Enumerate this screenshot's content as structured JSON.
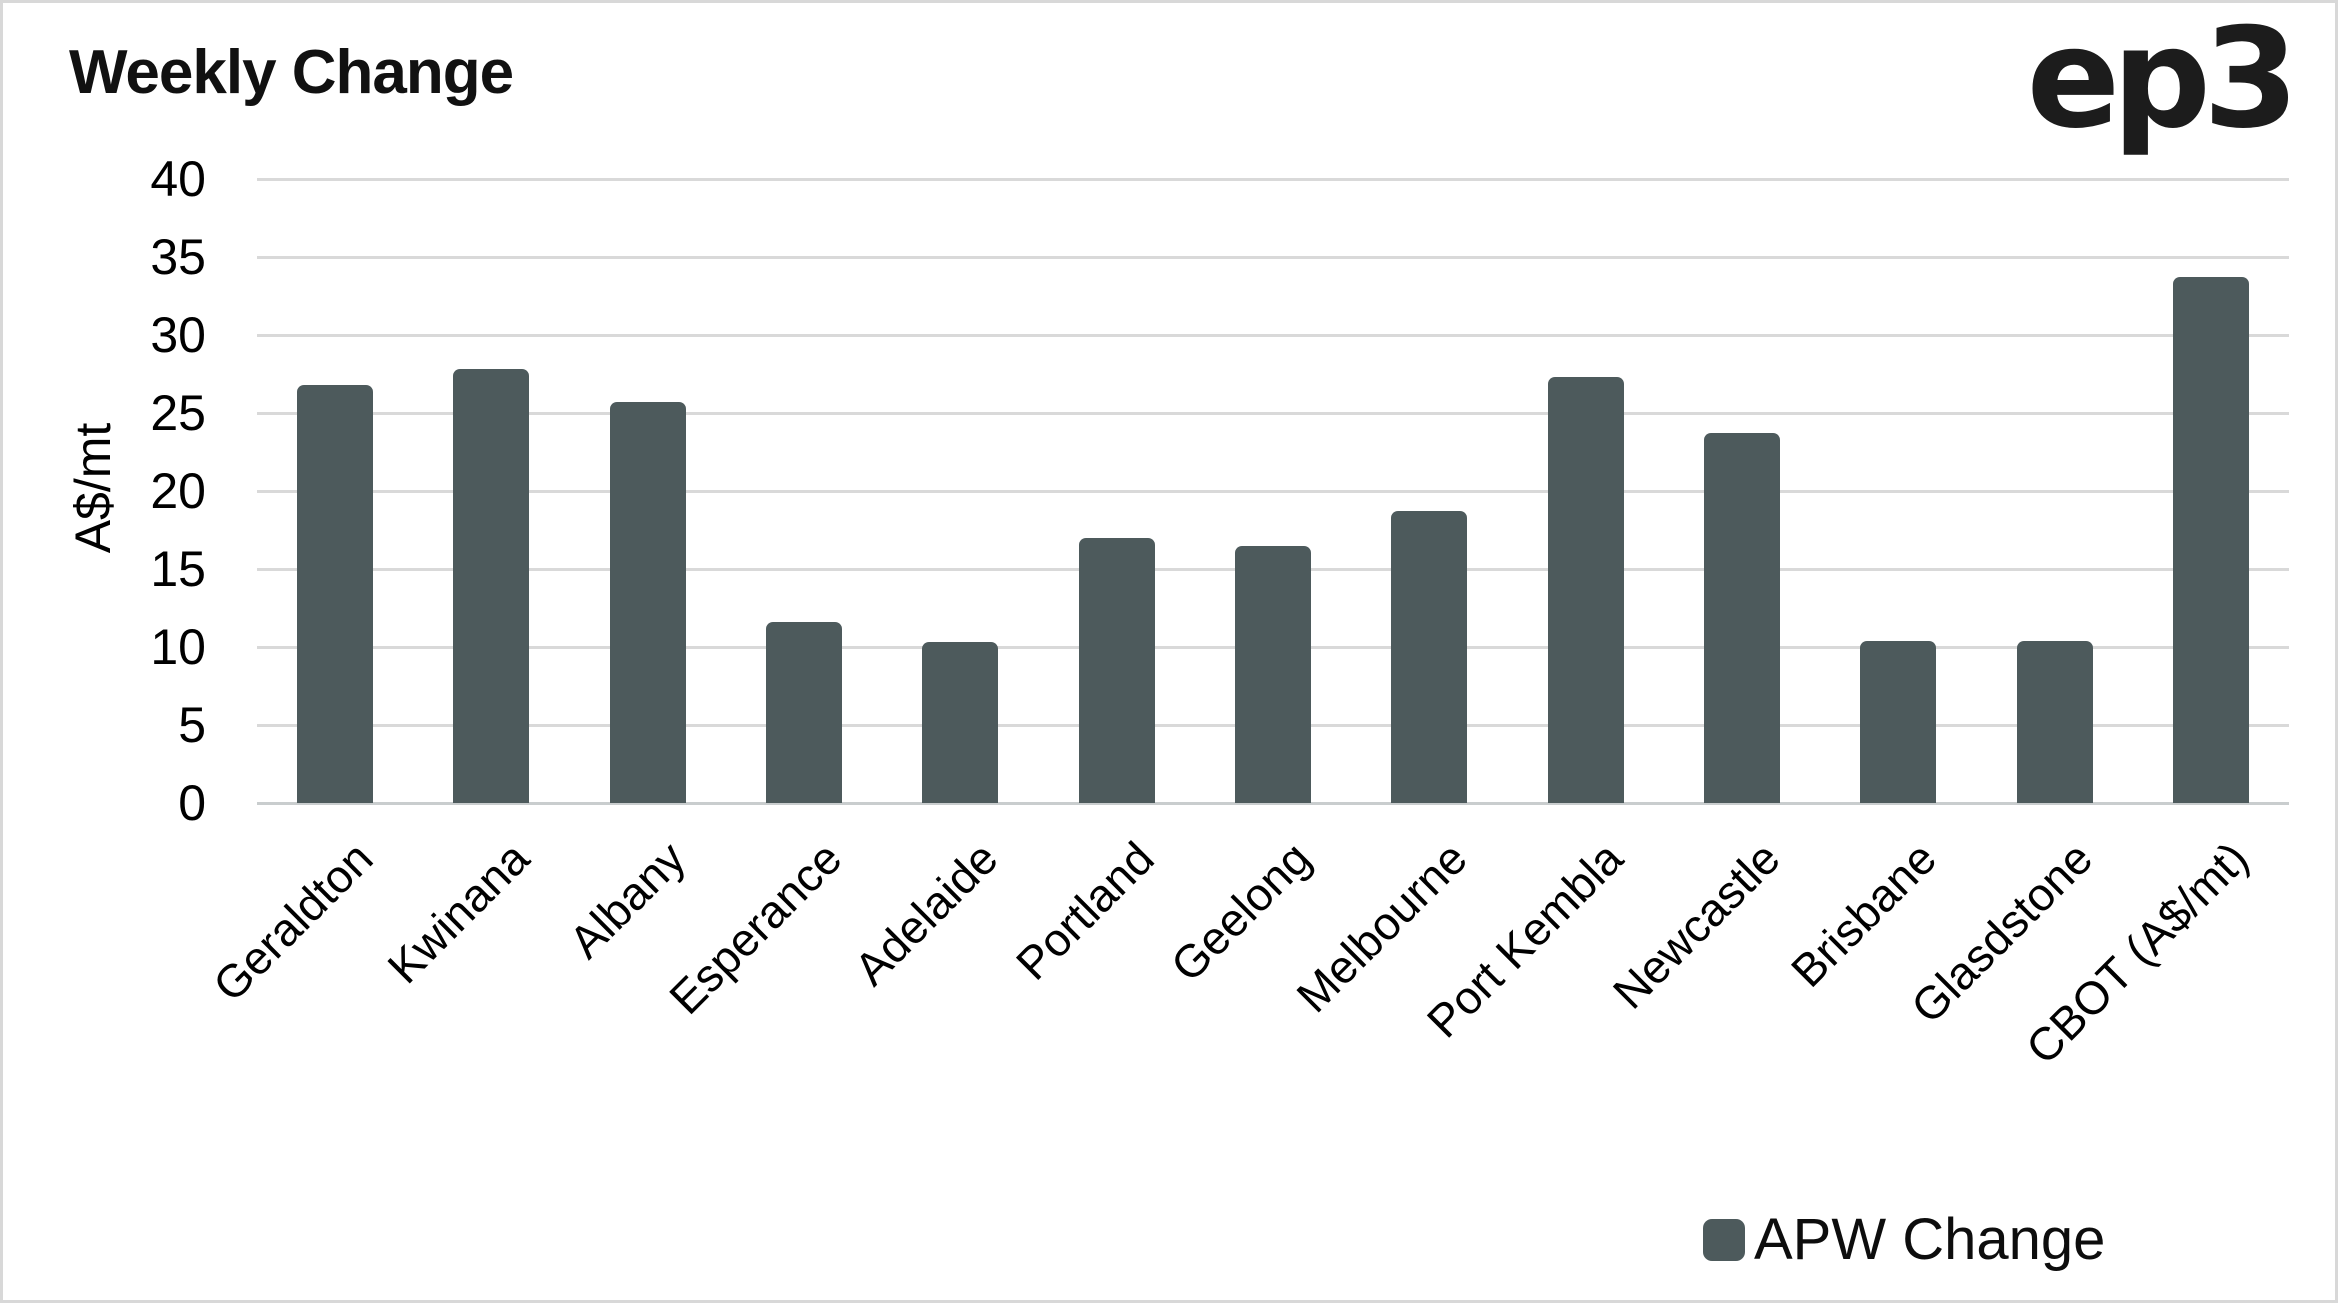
{
  "title": "Weekly Change",
  "logo_text": "ep3",
  "y_axis": {
    "label": "A$/mt",
    "ticks": [
      40,
      35,
      30,
      25,
      20,
      15,
      10,
      5,
      0
    ]
  },
  "legend": {
    "label": "APW Change"
  },
  "colors": {
    "bar": "#4d5a5c",
    "gridline": "#d9d9d9",
    "baseline": "#c9cdce",
    "text": "#000000",
    "title": "#111111",
    "logo": "#1c1c1c",
    "canvas_border": "#d8d8d8",
    "background": "#ffffff"
  },
  "chart_data": {
    "type": "bar",
    "title": "Weekly Change",
    "xlabel": "",
    "ylabel": "A$/mt",
    "ylim": [
      0,
      40
    ],
    "ytick_step": 5,
    "grid": true,
    "legend_position": "bottom-right",
    "categories": [
      "Geraldton",
      "Kwinana",
      "Albany",
      "Esperance",
      "Adelaide",
      "Portland",
      "Geelong",
      "Melbourne",
      "Port Kembla",
      "Newcastle",
      "Brisbane",
      "Glasdstone",
      "CBOT (A$/mt)"
    ],
    "series": [
      {
        "name": "APW Change",
        "color": "#4d5a5c",
        "values": [
          26.8,
          27.8,
          25.7,
          11.6,
          10.3,
          17.0,
          16.5,
          18.7,
          27.3,
          23.7,
          10.4,
          10.4,
          33.7
        ]
      }
    ]
  }
}
